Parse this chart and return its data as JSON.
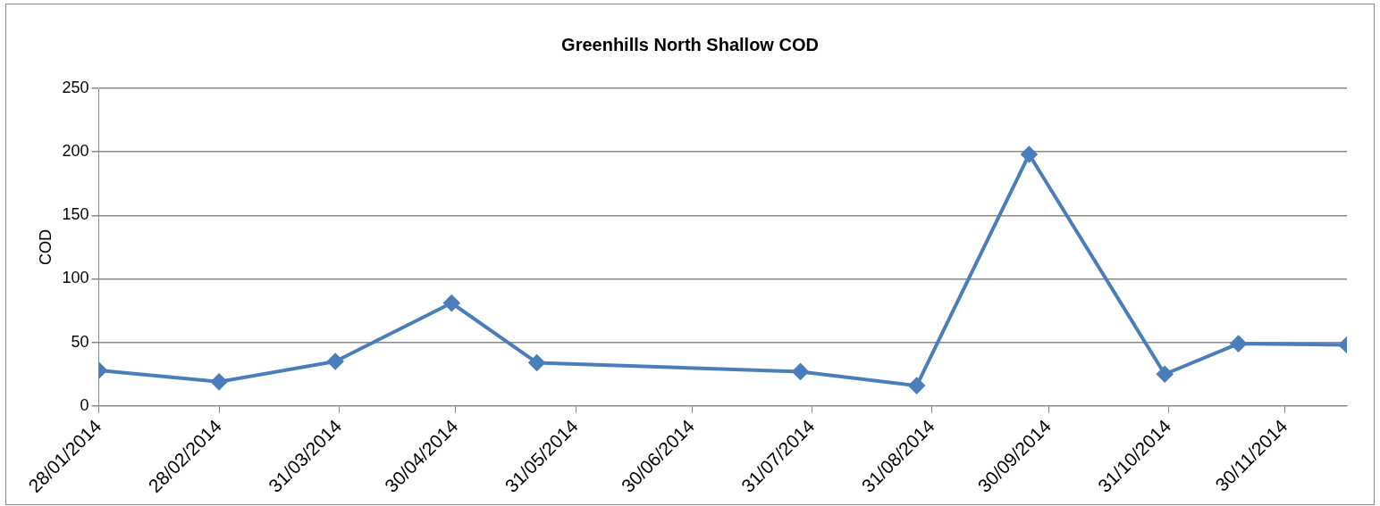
{
  "chart_data": {
    "type": "line",
    "title": "Greenhills North Shallow COD",
    "ylabel": "COD",
    "x": [
      "2014-01-28",
      "2014-02-28",
      "2014-03-30",
      "2014-04-29",
      "2014-05-21",
      "2014-07-28",
      "2014-08-27",
      "2014-09-25",
      "2014-10-30",
      "2014-11-18",
      "2014-12-16"
    ],
    "series": [
      {
        "color": "#4a7ebb",
        "values": [
          28,
          19,
          35,
          81,
          34,
          27,
          16,
          198,
          25,
          49,
          48
        ]
      }
    ],
    "xlim": [
      "2014-01-28",
      "2014-12-16"
    ],
    "xticks": [
      {
        "value": "2014-01-28",
        "label": "28/01/2014"
      },
      {
        "value": "2014-02-28",
        "label": "28/02/2014"
      },
      {
        "value": "2014-03-31",
        "label": "31/03/2014"
      },
      {
        "value": "2014-04-30",
        "label": "30/04/2014"
      },
      {
        "value": "2014-05-31",
        "label": "31/05/2014"
      },
      {
        "value": "2014-06-30",
        "label": "30/06/2014"
      },
      {
        "value": "2014-07-31",
        "label": "31/07/2014"
      },
      {
        "value": "2014-08-31",
        "label": "31/08/2014"
      },
      {
        "value": "2014-09-30",
        "label": "30/09/2014"
      },
      {
        "value": "2014-10-31",
        "label": "31/10/2014"
      },
      {
        "value": "2014-11-30",
        "label": "30/11/2014"
      }
    ],
    "ylim": [
      0,
      250
    ],
    "yticks": [
      0,
      50,
      100,
      150,
      200,
      250
    ],
    "grid": "y",
    "legend": false,
    "marker": "diamond",
    "line_style": "solid"
  }
}
